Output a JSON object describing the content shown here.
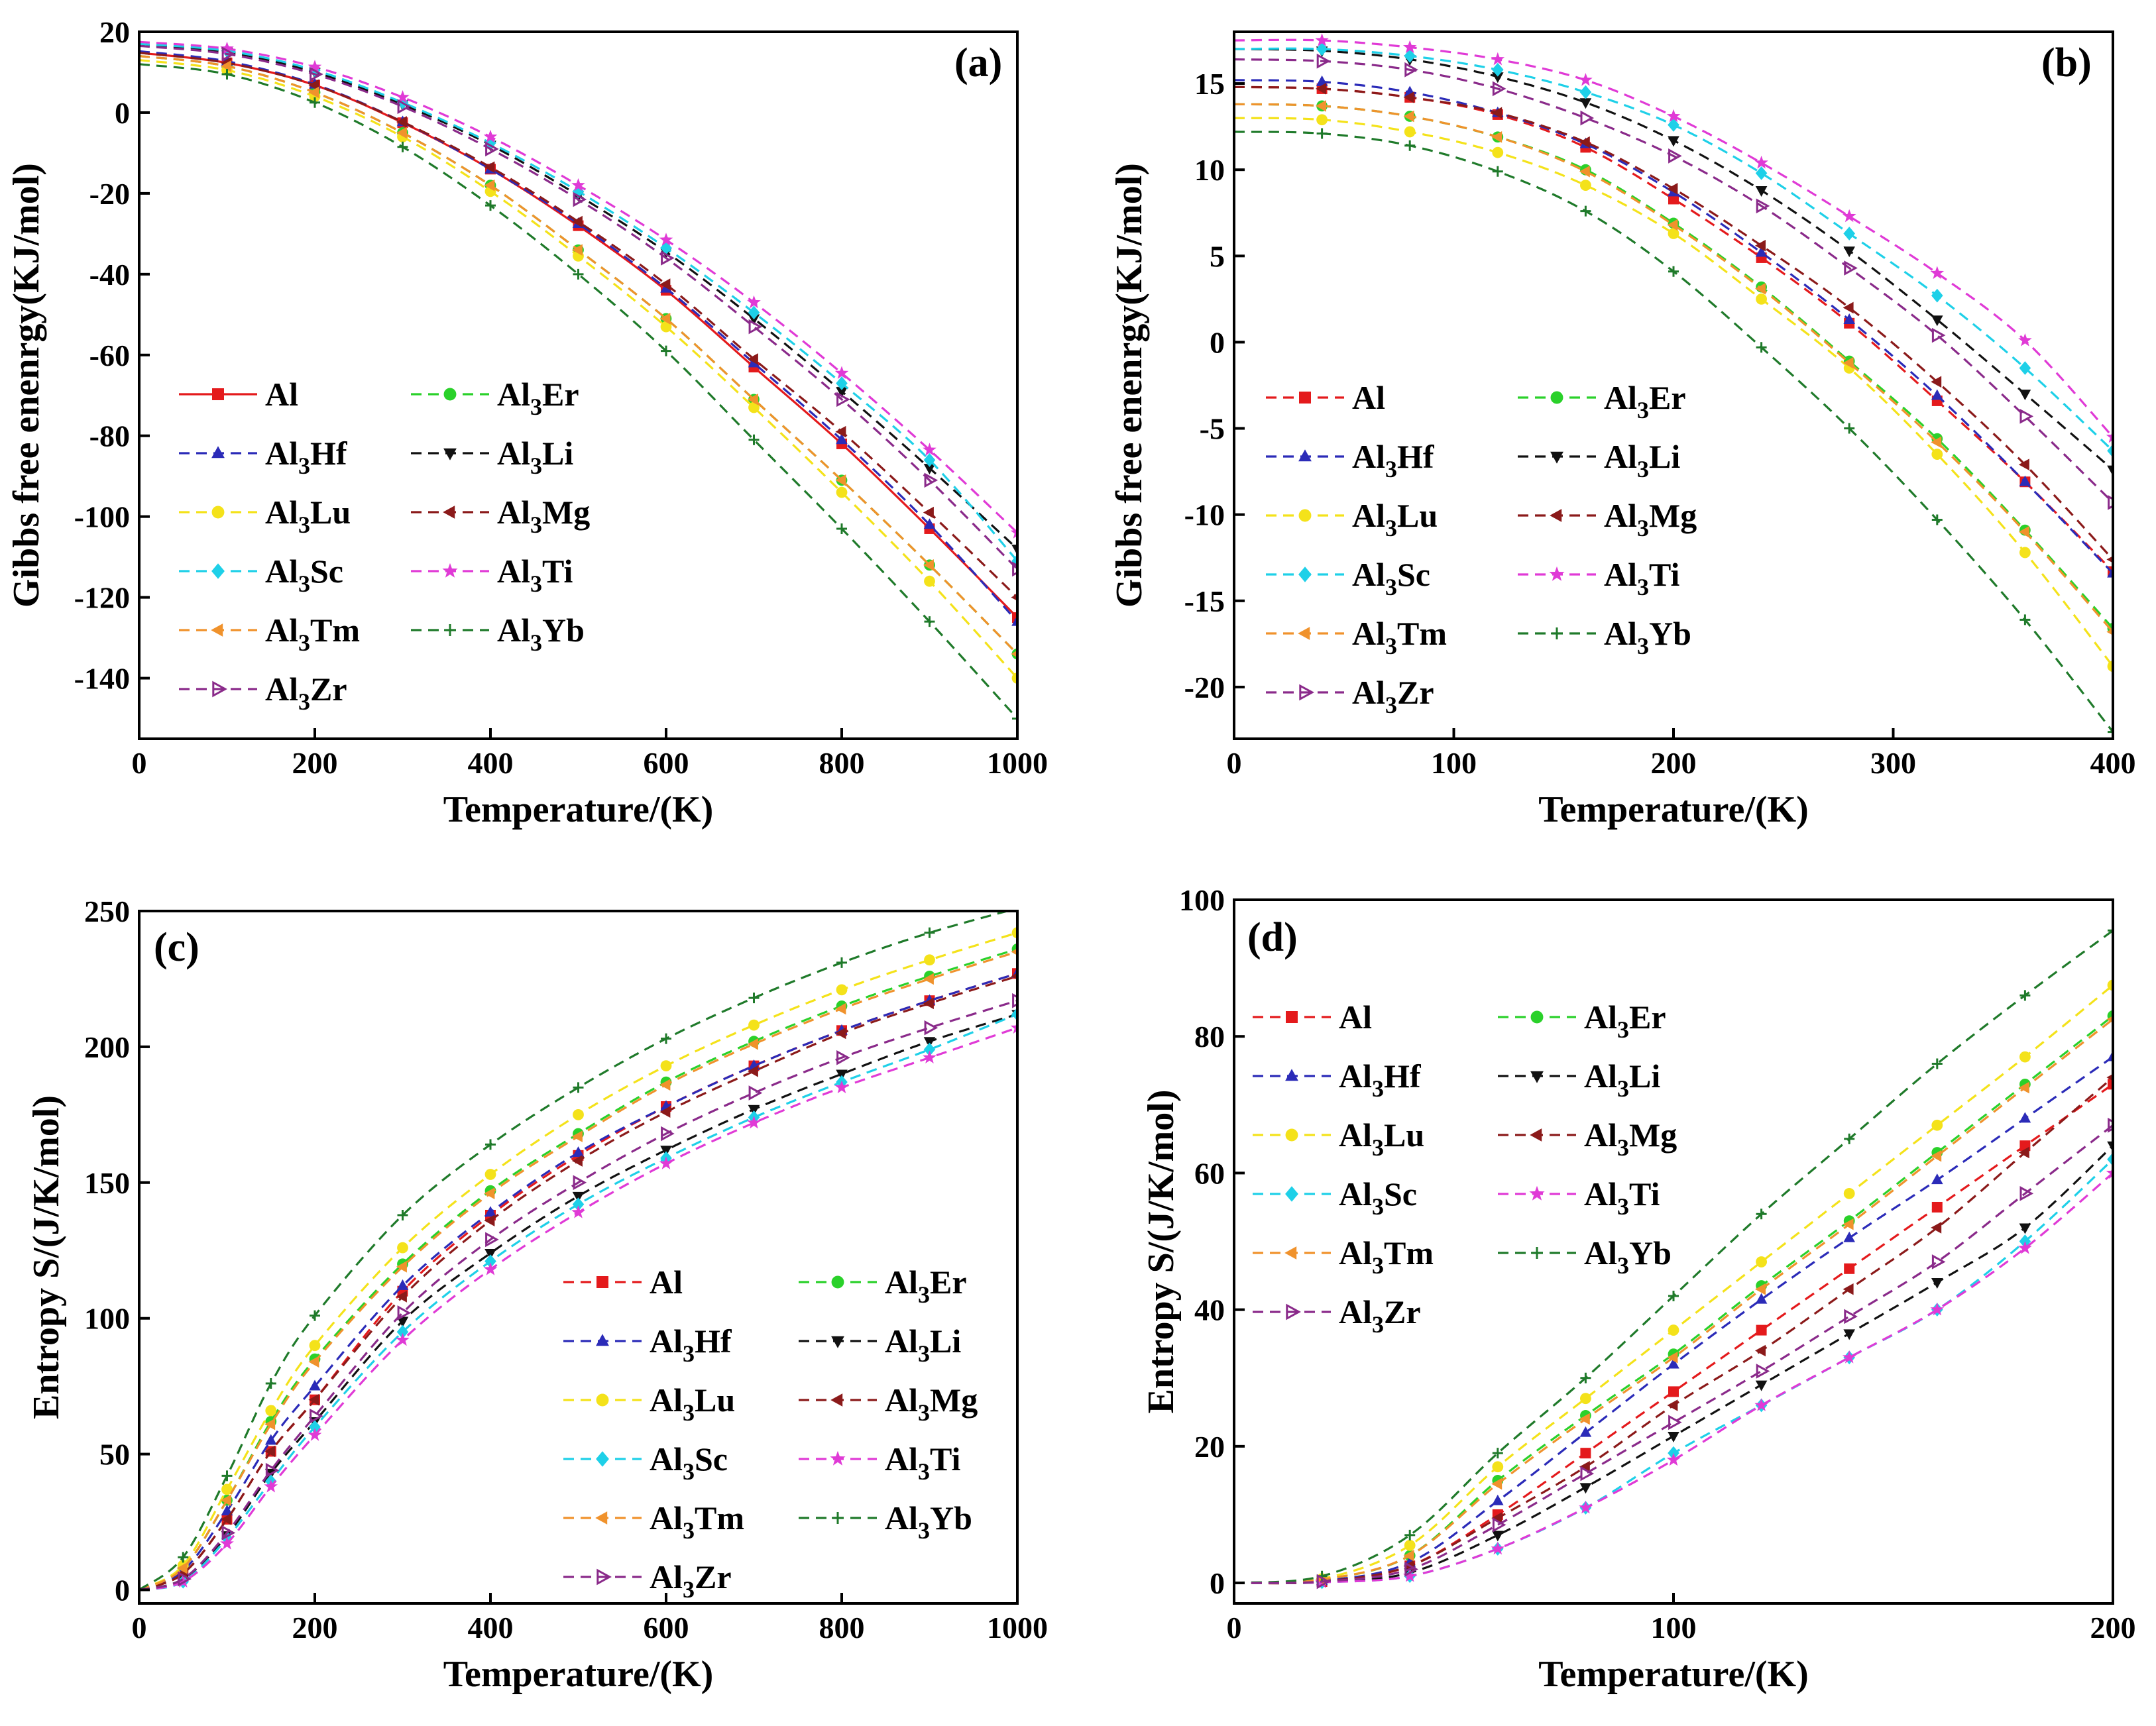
{
  "chart_data": [
    {
      "type": "line",
      "panel": "(a)",
      "xlabel": "Temperature/(K)",
      "ylabel": "Gibbs free enenrgy(KJ/mol)",
      "xlim": [
        0,
        1000
      ],
      "ylim": [
        -155,
        20
      ],
      "xticks": [
        0,
        200,
        400,
        600,
        800,
        1000
      ],
      "yticks": [
        20,
        0,
        -20,
        -40,
        -60,
        -80,
        -100,
        -120,
        -140
      ],
      "legend_position": "lower-left",
      "x": [
        0,
        100,
        200,
        300,
        400,
        500,
        600,
        700,
        800,
        900,
        1000
      ],
      "series": [
        {
          "name": "Al",
          "sub": "",
          "suffix": "",
          "color": "#e41a1c",
          "marker": "square",
          "solid": true,
          "values": [
            14.8,
            12.3,
            6.8,
            -2.5,
            -14,
            -28,
            -44,
            -63,
            -82,
            -103,
            -125
          ]
        },
        {
          "name": "Al",
          "sub": "3",
          "suffix": "Er",
          "color": "#2ad12a",
          "marker": "circle",
          "values": [
            14,
            11.5,
            5,
            -5,
            -18,
            -34,
            -51,
            -71,
            -91,
            -112,
            -134
          ]
        },
        {
          "name": "Al",
          "sub": "3",
          "suffix": "Hf",
          "color": "#2b2bb8",
          "marker": "triangle-up",
          "values": [
            15.2,
            12.7,
            7,
            -2.3,
            -14,
            -27.5,
            -43.5,
            -62,
            -81,
            -102,
            -126
          ]
        },
        {
          "name": "Al",
          "sub": "3",
          "suffix": "Li",
          "color": "#111111",
          "marker": "triangle-down",
          "values": [
            16.8,
            15,
            10,
            2,
            -8,
            -20.5,
            -34.5,
            -51,
            -69,
            -88,
            -108
          ]
        },
        {
          "name": "Al",
          "sub": "3",
          "suffix": "Lu",
          "color": "#f4e21a",
          "marker": "circle",
          "values": [
            13,
            10.5,
            4,
            -6,
            -19.5,
            -35.5,
            -53,
            -73,
            -94,
            -116,
            -140
          ]
        },
        {
          "name": "Al",
          "sub": "3",
          "suffix": "Mg",
          "color": "#8b1a1a",
          "marker": "triangle-left",
          "values": [
            14.8,
            12.3,
            6.8,
            -2.3,
            -13.5,
            -27,
            -42.5,
            -61,
            -79,
            -99,
            -120
          ]
        },
        {
          "name": "Al",
          "sub": "3",
          "suffix": "Sc",
          "color": "#1ed0e8",
          "marker": "diamond",
          "values": [
            17,
            15.3,
            10.5,
            2.5,
            -7.5,
            -19.5,
            -33.5,
            -49.5,
            -67,
            -86,
            -111
          ]
        },
        {
          "name": "Al",
          "sub": "3",
          "suffix": "Ti",
          "color": "#e03ad6",
          "marker": "star",
          "values": [
            17.5,
            15.8,
            11.3,
            3.8,
            -6,
            -18,
            -31.5,
            -47,
            -64.5,
            -83.5,
            -104
          ]
        },
        {
          "name": "Al",
          "sub": "3",
          "suffix": "Tm",
          "color": "#f0922c",
          "marker": "triangle-left",
          "values": [
            14,
            11.5,
            5,
            -5,
            -18,
            -34,
            -51,
            -71,
            -91,
            -112,
            -134
          ]
        },
        {
          "name": "Al",
          "sub": "3",
          "suffix": "Yb",
          "color": "#1f7a2a",
          "marker": "plus",
          "values": [
            12,
            9.5,
            2.5,
            -8.5,
            -23,
            -40,
            -59,
            -81,
            -103,
            -126,
            -150
          ]
        },
        {
          "name": "Al",
          "sub": "3",
          "suffix": "Zr",
          "color": "#8a2a8a",
          "marker": "triangle-right",
          "values": [
            16.5,
            14.5,
            9.5,
            1.5,
            -9,
            -21.5,
            -36,
            -53,
            -71,
            -91,
            -113
          ]
        }
      ]
    },
    {
      "type": "line",
      "panel": "(b)",
      "xlabel": "Temperature/(K)",
      "ylabel": "Gibbs free enenrgy(KJ/mol)",
      "xlim": [
        0,
        400
      ],
      "ylim": [
        -23,
        18
      ],
      "xticks": [
        0,
        100,
        200,
        300,
        400
      ],
      "yticks": [
        15,
        10,
        5,
        0,
        -5,
        -10,
        -15,
        -20
      ],
      "legend_position": "lower-left",
      "x": [
        0,
        40,
        80,
        120,
        160,
        200,
        240,
        280,
        320,
        360,
        400
      ],
      "series": [
        {
          "name": "Al",
          "sub": "",
          "suffix": "",
          "color": "#e41a1c",
          "marker": "square",
          "values": [
            14.8,
            14.7,
            14.2,
            13.2,
            11.3,
            8.3,
            4.9,
            1.1,
            -3.4,
            -8.1,
            -13.3
          ]
        },
        {
          "name": "Al",
          "sub": "3",
          "suffix": "Er",
          "color": "#2ad12a",
          "marker": "circle",
          "values": [
            13.8,
            13.7,
            13.1,
            11.9,
            10,
            6.9,
            3.2,
            -1.1,
            -5.6,
            -10.9,
            -16.6
          ]
        },
        {
          "name": "Al",
          "sub": "3",
          "suffix": "Hf",
          "color": "#2b2bb8",
          "marker": "triangle-up",
          "values": [
            15.2,
            15.1,
            14.5,
            13.3,
            11.5,
            8.7,
            5.2,
            1.3,
            -3.1,
            -8.1,
            -13.4
          ]
        },
        {
          "name": "Al",
          "sub": "3",
          "suffix": "Li",
          "color": "#111111",
          "marker": "triangle-down",
          "values": [
            17,
            16.9,
            16.4,
            15.4,
            13.9,
            11.7,
            8.8,
            5.3,
            1.3,
            -3,
            -7.4
          ]
        },
        {
          "name": "Al",
          "sub": "3",
          "suffix": "Lu",
          "color": "#f4e21a",
          "marker": "circle",
          "values": [
            13,
            12.9,
            12.2,
            11,
            9.1,
            6.3,
            2.5,
            -1.5,
            -6.5,
            -12.2,
            -18.8
          ]
        },
        {
          "name": "Al",
          "sub": "3",
          "suffix": "Mg",
          "color": "#8b1a1a",
          "marker": "triangle-left",
          "values": [
            14.8,
            14.7,
            14.2,
            13.3,
            11.6,
            8.9,
            5.6,
            2,
            -2.3,
            -7.1,
            -12.6
          ]
        },
        {
          "name": "Al",
          "sub": "3",
          "suffix": "Sc",
          "color": "#1ed0e8",
          "marker": "diamond",
          "values": [
            17,
            17,
            16.6,
            15.8,
            14.5,
            12.6,
            9.8,
            6.3,
            2.7,
            -1.5,
            -6.3
          ]
        },
        {
          "name": "Al",
          "sub": "3",
          "suffix": "Ti",
          "color": "#e03ad6",
          "marker": "star",
          "values": [
            17.5,
            17.5,
            17.1,
            16.4,
            15.2,
            13.1,
            10.4,
            7.3,
            4,
            0.1,
            -5.5
          ]
        },
        {
          "name": "Al",
          "sub": "3",
          "suffix": "Tm",
          "color": "#f0922c",
          "marker": "triangle-left",
          "values": [
            13.8,
            13.7,
            13.1,
            11.9,
            9.9,
            6.8,
            3.1,
            -1.2,
            -5.8,
            -11,
            -16.8
          ]
        },
        {
          "name": "Al",
          "sub": "3",
          "suffix": "Yb",
          "color": "#1f7a2a",
          "marker": "plus",
          "values": [
            12.2,
            12.1,
            11.4,
            9.9,
            7.6,
            4.1,
            -0.3,
            -5,
            -10.3,
            -16.1,
            -22.6
          ]
        },
        {
          "name": "Al",
          "sub": "3",
          "suffix": "Zr",
          "color": "#8a2a8a",
          "marker": "triangle-right",
          "values": [
            16.4,
            16.3,
            15.8,
            14.7,
            13,
            10.8,
            7.9,
            4.3,
            0.4,
            -4.3,
            -9.3
          ]
        }
      ]
    },
    {
      "type": "line",
      "panel": "(c)",
      "xlabel": "Temperature/(K)",
      "ylabel": "Entropy S/(J/K/mol)",
      "xlim": [
        0,
        1000
      ],
      "ylim": [
        -5,
        250
      ],
      "xticks": [
        0,
        200,
        400,
        600,
        800,
        1000
      ],
      "yticks": [
        0,
        50,
        100,
        150,
        200,
        250
      ],
      "legend_position": "lower-right",
      "x": [
        0,
        50,
        100,
        150,
        200,
        300,
        400,
        500,
        600,
        700,
        800,
        900,
        1000
      ],
      "series": [
        {
          "name": "Al",
          "sub": "",
          "suffix": "",
          "color": "#e41a1c",
          "marker": "square",
          "values": [
            0,
            6,
            26,
            51,
            70,
            110,
            138,
            160,
            178,
            193,
            206,
            217,
            227
          ]
        },
        {
          "name": "Al",
          "sub": "3",
          "suffix": "Er",
          "color": "#2ad12a",
          "marker": "circle",
          "values": [
            0,
            8,
            33,
            62,
            85,
            120,
            147,
            168,
            187,
            202,
            215,
            226,
            236
          ]
        },
        {
          "name": "Al",
          "sub": "3",
          "suffix": "Hf",
          "color": "#2b2bb8",
          "marker": "triangle-up",
          "values": [
            0,
            7,
            29,
            55,
            75,
            112,
            139,
            161,
            178,
            193,
            206,
            217,
            227
          ]
        },
        {
          "name": "Al",
          "sub": "3",
          "suffix": "Li",
          "color": "#111111",
          "marker": "triangle-down",
          "values": [
            0,
            4,
            20,
            43,
            62,
            99,
            124,
            145,
            162,
            177,
            190,
            202,
            212
          ]
        },
        {
          "name": "Al",
          "sub": "3",
          "suffix": "Lu",
          "color": "#f4e21a",
          "marker": "circle",
          "values": [
            0,
            9,
            37,
            66,
            90,
            126,
            153,
            175,
            193,
            208,
            221,
            232,
            242
          ]
        },
        {
          "name": "Al",
          "sub": "3",
          "suffix": "Mg",
          "color": "#8b1a1a",
          "marker": "triangle-left",
          "values": [
            0,
            6,
            26,
            51,
            70,
            108,
            136,
            158,
            176,
            191,
            205,
            216,
            226
          ]
        },
        {
          "name": "Al",
          "sub": "3",
          "suffix": "Sc",
          "color": "#1ed0e8",
          "marker": "diamond",
          "values": [
            0,
            3,
            19,
            40,
            60,
            95,
            121,
            142,
            159,
            174,
            187,
            199,
            212
          ]
        },
        {
          "name": "Al",
          "sub": "3",
          "suffix": "Ti",
          "color": "#e03ad6",
          "marker": "star",
          "values": [
            0,
            3,
            17,
            38,
            57,
            92,
            118,
            139,
            157,
            172,
            185,
            196,
            207
          ]
        },
        {
          "name": "Al",
          "sub": "3",
          "suffix": "Tm",
          "color": "#f0922c",
          "marker": "triangle-left",
          "values": [
            0,
            8,
            33,
            61,
            84,
            119,
            146,
            167,
            186,
            201,
            214,
            225,
            235
          ]
        },
        {
          "name": "Al",
          "sub": "3",
          "suffix": "Yb",
          "color": "#1f7a2a",
          "marker": "plus",
          "values": [
            0,
            12,
            42,
            76,
            101,
            138,
            164,
            185,
            203,
            218,
            231,
            242,
            251
          ]
        },
        {
          "name": "Al",
          "sub": "3",
          "suffix": "Zr",
          "color": "#8a2a8a",
          "marker": "triangle-right",
          "values": [
            0,
            4,
            21,
            44,
            64,
            102,
            129,
            150,
            168,
            183,
            196,
            207,
            217
          ]
        }
      ]
    },
    {
      "type": "line",
      "panel": "(d)",
      "xlabel": "Temperature/(K)",
      "ylabel": "Entropy S/(J/K/mol)",
      "xlim": [
        0,
        200
      ],
      "ylim": [
        -3,
        100
      ],
      "xticks": [
        0,
        100,
        200
      ],
      "yticks": [
        0,
        20,
        40,
        60,
        80,
        100
      ],
      "legend_position": "upper-left",
      "x": [
        0,
        20,
        40,
        60,
        80,
        100,
        120,
        140,
        160,
        180,
        200
      ],
      "series": [
        {
          "name": "Al",
          "sub": "",
          "suffix": "",
          "color": "#e41a1c",
          "marker": "square",
          "values": [
            0,
            0.2,
            2.5,
            10,
            19,
            28,
            37,
            46,
            55,
            64,
            73
          ]
        },
        {
          "name": "Al",
          "sub": "3",
          "suffix": "Er",
          "color": "#2ad12a",
          "marker": "circle",
          "values": [
            0,
            0.5,
            4,
            15,
            24.5,
            33.5,
            43.5,
            53,
            63,
            73,
            83
          ]
        },
        {
          "name": "Al",
          "sub": "3",
          "suffix": "Hf",
          "color": "#2b2bb8",
          "marker": "triangle-up",
          "values": [
            0,
            0.3,
            3,
            12,
            22,
            32,
            41.5,
            50.5,
            59,
            68,
            77
          ]
        },
        {
          "name": "Al",
          "sub": "3",
          "suffix": "Li",
          "color": "#111111",
          "marker": "triangle-down",
          "values": [
            0,
            0.1,
            1.5,
            7,
            14,
            21.5,
            29,
            36.5,
            44,
            52,
            64
          ]
        },
        {
          "name": "Al",
          "sub": "3",
          "suffix": "Lu",
          "color": "#f4e21a",
          "marker": "circle",
          "values": [
            0,
            0.6,
            5.5,
            17,
            27,
            37,
            47,
            57,
            67,
            77,
            87.5
          ]
        },
        {
          "name": "Al",
          "sub": "3",
          "suffix": "Mg",
          "color": "#8b1a1a",
          "marker": "triangle-left",
          "values": [
            0,
            0.2,
            2.5,
            9.5,
            17,
            26,
            34,
            43,
            52,
            63,
            74
          ]
        },
        {
          "name": "Al",
          "sub": "3",
          "suffix": "Sc",
          "color": "#1ed0e8",
          "marker": "diamond",
          "values": [
            0,
            0.1,
            1,
            5,
            11,
            19,
            26,
            33,
            40,
            50,
            62
          ]
        },
        {
          "name": "Al",
          "sub": "3",
          "suffix": "Ti",
          "color": "#e03ad6",
          "marker": "star",
          "values": [
            0,
            0.1,
            1,
            5,
            11,
            18,
            26,
            33,
            40,
            49,
            60
          ]
        },
        {
          "name": "Al",
          "sub": "3",
          "suffix": "Tm",
          "color": "#f0922c",
          "marker": "triangle-left",
          "values": [
            0,
            0.5,
            4,
            14.5,
            24,
            33,
            43,
            52.5,
            62.5,
            72.5,
            82.5
          ]
        },
        {
          "name": "Al",
          "sub": "3",
          "suffix": "Yb",
          "color": "#1f7a2a",
          "marker": "plus",
          "values": [
            0,
            1,
            7,
            19,
            30,
            42,
            54,
            65,
            76,
            86,
            95.5
          ]
        },
        {
          "name": "Al",
          "sub": "3",
          "suffix": "Zr",
          "color": "#8a2a8a",
          "marker": "triangle-right",
          "values": [
            0,
            0.2,
            2,
            8.5,
            16,
            23.5,
            31,
            39,
            47,
            57,
            67
          ]
        }
      ]
    }
  ]
}
